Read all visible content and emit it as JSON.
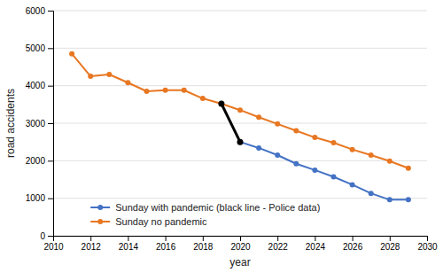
{
  "chart_data": {
    "type": "line",
    "xlabel": "year",
    "ylabel": "road accidents",
    "series": [
      {
        "name": "Sunday with pandemic (black line - Police data)",
        "color": "#4472C4",
        "x": [
          2020,
          2021,
          2022,
          2023,
          2024,
          2025,
          2026,
          2027,
          2028,
          2029
        ],
        "values": [
          2500,
          2340,
          2150,
          1920,
          1750,
          1570,
          1360,
          1130,
          960,
          960
        ]
      },
      {
        "name": "Sunday no pandemic",
        "color": "#E87722",
        "x": [
          2011,
          2012,
          2013,
          2014,
          2015,
          2016,
          2017,
          2018,
          2019,
          2020,
          2021,
          2022,
          2023,
          2024,
          2025,
          2026,
          2027,
          2028,
          2029
        ],
        "values": [
          4850,
          4250,
          4300,
          4080,
          3850,
          3880,
          3880,
          3660,
          3520,
          3350,
          3160,
          2980,
          2800,
          2620,
          2480,
          2300,
          2150,
          1990,
          1800
        ]
      },
      {
        "color": "#000000",
        "x": [
          2019,
          2020
        ],
        "values": [
          3520,
          2500
        ]
      }
    ],
    "marker": "circle",
    "xlim": [
      2010,
      2030
    ],
    "ylim": [
      0,
      6000
    ],
    "xticks": [
      2010,
      2012,
      2014,
      2016,
      2018,
      2020,
      2022,
      2024,
      2026,
      2028,
      2030
    ],
    "yticks": [
      0,
      1000,
      2000,
      3000,
      4000,
      5000,
      6000
    ],
    "grid": "y",
    "legend": "lower left"
  }
}
